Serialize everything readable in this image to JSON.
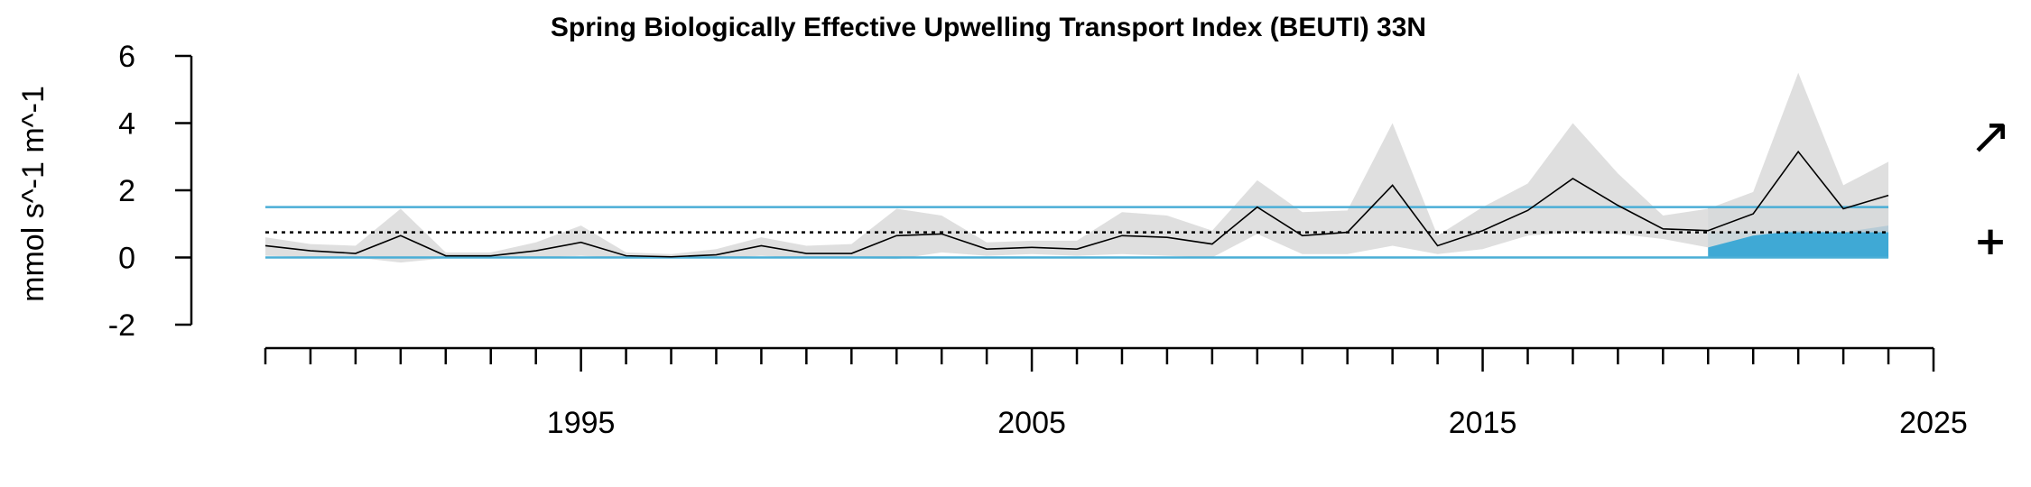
{
  "chart_data": {
    "type": "line",
    "title": "Spring Biologically Effective Upwelling Transport Index (BEUTI) 33N",
    "xlabel": "",
    "ylabel": "mmol s^-1 m^-1",
    "xlim": [
      1988,
      2025
    ],
    "ylim": [
      -2,
      6
    ],
    "x_ticks_major": [
      1995,
      2005,
      2015,
      2025
    ],
    "x_tick_labels": [
      "1995",
      "2005",
      "2015",
      "2025"
    ],
    "y_ticks": [
      -2,
      0,
      2,
      4,
      6
    ],
    "y_tick_labels": [
      "-2",
      "0",
      "2",
      "4",
      "6"
    ],
    "x": [
      1988,
      1989,
      1990,
      1991,
      1992,
      1993,
      1994,
      1995,
      1996,
      1997,
      1998,
      1999,
      2000,
      2001,
      2002,
      2003,
      2004,
      2005,
      2006,
      2007,
      2008,
      2009,
      2010,
      2011,
      2012,
      2013,
      2014,
      2015,
      2016,
      2017,
      2018,
      2019,
      2020,
      2021,
      2022,
      2023,
      2024
    ],
    "series": [
      {
        "values": [
          0.35,
          0.2,
          0.12,
          0.65,
          0.05,
          0.05,
          0.2,
          0.45,
          0.05,
          0.02,
          0.08,
          0.35,
          0.12,
          0.12,
          0.65,
          0.7,
          0.25,
          0.3,
          0.25,
          0.65,
          0.6,
          0.4,
          1.5,
          0.65,
          0.75,
          2.15,
          0.35,
          0.8,
          1.4,
          2.35,
          1.55,
          0.85,
          0.8,
          1.3,
          3.15,
          1.45,
          1.85
        ],
        "error_low": [
          0.05,
          0.02,
          0.0,
          -0.15,
          -0.02,
          -0.02,
          0.0,
          0.05,
          -0.02,
          -0.03,
          -0.02,
          0.05,
          -0.02,
          -0.02,
          -0.05,
          0.15,
          0.05,
          0.1,
          0.05,
          0.1,
          0.05,
          0.0,
          0.7,
          0.1,
          0.1,
          0.35,
          0.1,
          0.25,
          0.65,
          0.75,
          0.7,
          0.55,
          0.3,
          0.65,
          0.8,
          0.75,
          0.95
        ],
        "error_high": [
          0.6,
          0.4,
          0.35,
          1.45,
          0.15,
          0.15,
          0.45,
          0.95,
          0.15,
          0.1,
          0.25,
          0.6,
          0.35,
          0.4,
          1.45,
          1.25,
          0.45,
          0.5,
          0.5,
          1.35,
          1.25,
          0.8,
          2.3,
          1.35,
          1.4,
          4.0,
          0.65,
          1.5,
          2.2,
          4.0,
          2.5,
          1.25,
          1.45,
          1.95,
          5.5,
          2.15,
          2.85
        ]
      }
    ],
    "mean": 0.75,
    "sd_upper": 1.5,
    "sd_lower": 0.0,
    "recent_window": [
      2020,
      2024
    ],
    "trend_symbol": "↗",
    "mean_symbol": "+",
    "colors": {
      "line": "#000000",
      "error_band": "#dcdcdc",
      "sd_lines": "#4aaed6",
      "recent_fill": "#3fa9d5",
      "recent_shade": "#b7cbd6",
      "mean_line": "#000000"
    }
  }
}
